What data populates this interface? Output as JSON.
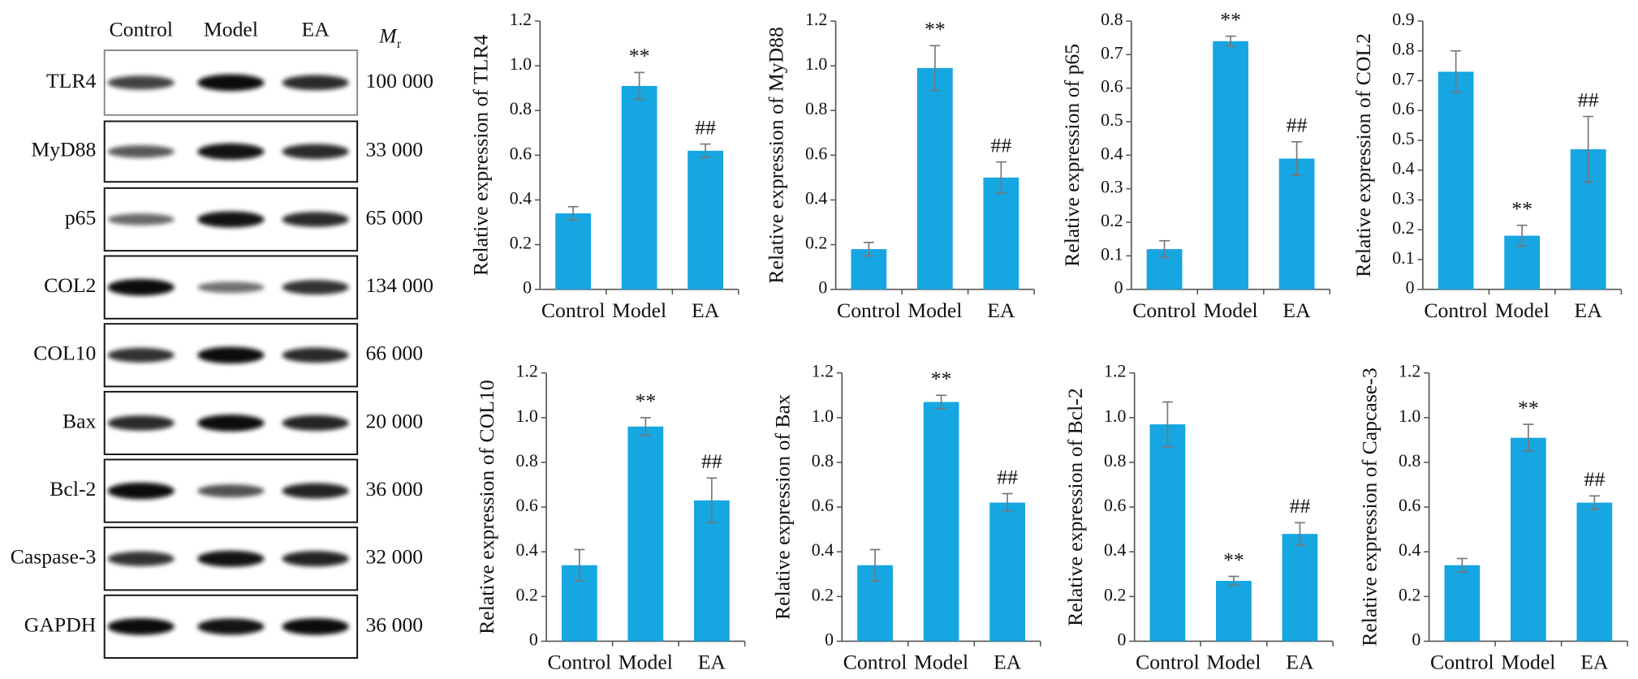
{
  "blot": {
    "lanes": [
      "Control",
      "Model",
      "EA"
    ],
    "mr_header": {
      "symbol": "M",
      "subscript": "r"
    },
    "proteins": [
      {
        "name": "TLR4",
        "mr": "100 000"
      },
      {
        "name": "MyD88",
        "mr": "33 000"
      },
      {
        "name": "p65",
        "mr": "65 000"
      },
      {
        "name": "COL2",
        "mr": "134 000"
      },
      {
        "name": "COL10",
        "mr": "66 000"
      },
      {
        "name": "Bax",
        "mr": "20 000"
      },
      {
        "name": "Bcl-2",
        "mr": "36 000"
      },
      {
        "name": "Caspase-3",
        "mr": "32 000"
      },
      {
        "name": "GAPDH",
        "mr": "36 000"
      }
    ]
  },
  "chart_data": [
    {
      "type": "bar",
      "ylabel": "Relative expression of TLR4",
      "categories": [
        "Control",
        "Model",
        "EA"
      ],
      "values": [
        0.34,
        0.91,
        0.62
      ],
      "errors": [
        0.03,
        0.06,
        0.03
      ],
      "annotations": [
        null,
        "**",
        "##"
      ],
      "color": "#16a6e2",
      "ylim": [
        0,
        1.2
      ],
      "yticks": [
        0,
        0.2,
        0.4,
        0.6,
        0.8,
        {
          "value": 1,
          "label": "1.0"
        },
        1.2
      ]
    },
    {
      "type": "bar",
      "ylabel": "Relative expression of MyD88",
      "categories": [
        "Control",
        "Model",
        "EA"
      ],
      "values": [
        0.18,
        0.99,
        0.5
      ],
      "errors": [
        0.03,
        0.1,
        0.07
      ],
      "annotations": [
        null,
        "**",
        "##"
      ],
      "color": "#16a6e2",
      "ylim": [
        0,
        1.2
      ],
      "yticks": [
        0,
        0.2,
        0.4,
        0.6,
        0.8,
        {
          "value": 1,
          "label": "1.0"
        },
        1.2
      ]
    },
    {
      "type": "bar",
      "ylabel": "Relative expression of p65",
      "categories": [
        "Control",
        "Model",
        "EA"
      ],
      "values": [
        0.12,
        0.74,
        0.39
      ],
      "errors": [
        0.025,
        0.015,
        0.05
      ],
      "annotations": [
        null,
        "**",
        "##"
      ],
      "color": "#16a6e2",
      "ylim": [
        0,
        0.8
      ],
      "yticks": [
        0,
        0.1,
        0.2,
        0.3,
        0.4,
        0.5,
        0.6,
        0.7,
        0.8
      ]
    },
    {
      "type": "bar",
      "ylabel": "Relative expression of COL2",
      "categories": [
        "Control",
        "Model",
        "EA"
      ],
      "values": [
        0.73,
        0.18,
        0.47
      ],
      "errors": [
        0.07,
        0.035,
        0.11
      ],
      "annotations": [
        null,
        "**",
        "##"
      ],
      "color": "#16a6e2",
      "ylim": [
        0,
        0.9
      ],
      "yticks": [
        0,
        0.1,
        0.2,
        0.3,
        0.4,
        0.5,
        0.6,
        0.7,
        0.8,
        0.9
      ]
    },
    {
      "type": "bar",
      "ylabel": "Relative expression of COL10",
      "categories": [
        "Control",
        "Model",
        "EA"
      ],
      "values": [
        0.34,
        0.96,
        0.63
      ],
      "errors": [
        0.07,
        0.04,
        0.1
      ],
      "annotations": [
        null,
        "**",
        "##"
      ],
      "color": "#16a6e2",
      "ylim": [
        0,
        1.2
      ],
      "yticks": [
        0,
        0.2,
        0.4,
        0.6,
        0.8,
        {
          "value": 1,
          "label": "1.0"
        },
        1.2
      ]
    },
    {
      "type": "bar",
      "ylabel": "Relative expression of Bax",
      "categories": [
        "Control",
        "Model",
        "EA"
      ],
      "values": [
        0.34,
        1.07,
        0.62
      ],
      "errors": [
        0.07,
        0.03,
        0.04
      ],
      "annotations": [
        null,
        "**",
        "##"
      ],
      "color": "#16a6e2",
      "ylim": [
        0,
        1.2
      ],
      "yticks": [
        0,
        0.2,
        0.4,
        0.6,
        0.8,
        {
          "value": 1,
          "label": "1.0"
        },
        1.2
      ]
    },
    {
      "type": "bar",
      "ylabel": "Relative expression of Bcl-2",
      "categories": [
        "Control",
        "Model",
        "EA"
      ],
      "values": [
        0.97,
        0.27,
        0.48
      ],
      "errors": [
        0.1,
        0.02,
        0.05
      ],
      "annotations": [
        null,
        "**",
        "##"
      ],
      "color": "#16a6e2",
      "ylim": [
        0,
        1.2
      ],
      "yticks": [
        0,
        0.2,
        0.4,
        0.6,
        0.8,
        {
          "value": 1,
          "label": "1.0"
        },
        1.2
      ]
    },
    {
      "type": "bar",
      "ylabel": "Relative expression of Capcase-3",
      "categories": [
        "Control",
        "Model",
        "EA"
      ],
      "values": [
        0.34,
        0.91,
        0.62
      ],
      "errors": [
        0.03,
        0.06,
        0.03
      ],
      "annotations": [
        null,
        "**",
        "##"
      ],
      "color": "#16a6e2",
      "ylim": [
        0,
        1.2
      ],
      "yticks": [
        0,
        0.2,
        0.4,
        0.6,
        0.8,
        {
          "value": 1,
          "label": "1.0"
        },
        1.2
      ]
    }
  ]
}
